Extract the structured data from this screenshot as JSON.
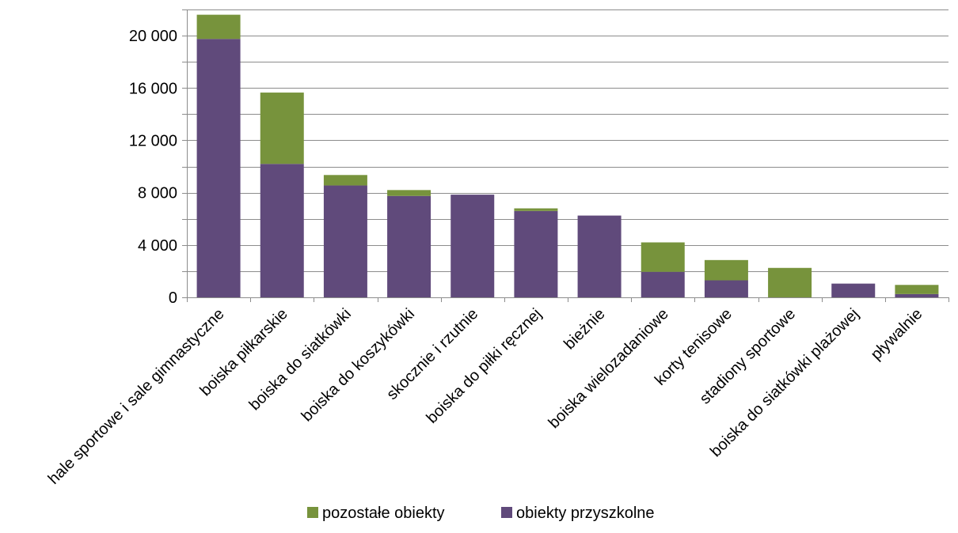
{
  "chart_data": {
    "type": "bar",
    "stacked": true,
    "categories": [
      "hale sportowe i sale gimnastyczne",
      "boiska piłkarskie",
      "boiska do siatkówki",
      "boiska do koszykówki",
      "skocznie i rzutnie",
      "boiska do piłki ręcznej",
      "bieżnie",
      "boiska wielozadaniowe",
      "korty tenisowe",
      "stadiony sportowe",
      "boiska do siatkówki plażowej",
      "pływalnie"
    ],
    "series": [
      {
        "name": "obiekty przyszkolne",
        "color": "#604A7B",
        "values": [
          19750,
          10200,
          8550,
          7750,
          7850,
          6600,
          6250,
          1950,
          1300,
          0,
          1050,
          250
        ]
      },
      {
        "name": "pozostałe obiekty",
        "color": "#77933C",
        "values": [
          1850,
          5450,
          800,
          450,
          0,
          200,
          0,
          2250,
          1550,
          2250,
          0,
          700
        ]
      }
    ],
    "y_ticks": [
      "0",
      "4 000",
      "8 000",
      "12 000",
      "16 000",
      "20 000"
    ],
    "y_tick_values": [
      0,
      4000,
      8000,
      12000,
      16000,
      20000
    ],
    "ylim": [
      0,
      22000
    ],
    "grid": true,
    "legend": {
      "position": "bottom",
      "items": [
        "pozostałe obiekty",
        "obiekty przyszkolne"
      ],
      "colors": [
        "#77933C",
        "#604A7B"
      ]
    }
  }
}
